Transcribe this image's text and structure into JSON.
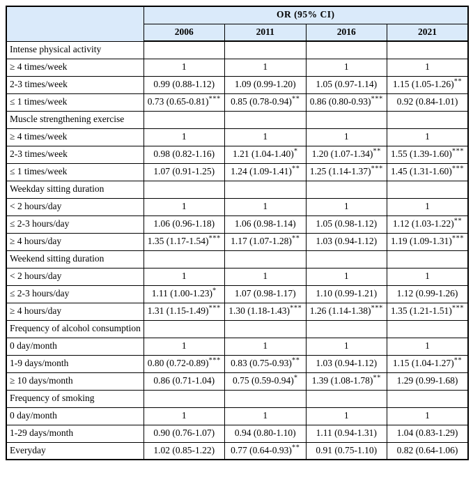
{
  "colors": {
    "header_bg": "#daeafa",
    "border": "#000000",
    "text": "#000000",
    "page_bg": "#ffffff"
  },
  "table": {
    "header": {
      "group_label": "OR (95% CI)",
      "years": [
        "2006",
        "2011",
        "2016",
        "2021"
      ]
    },
    "sections": [
      {
        "title": "Intense physical activity",
        "rows": [
          {
            "label": "≥ 4 times/week",
            "cells": [
              {
                "v": "1",
                "s": ""
              },
              {
                "v": "1",
                "s": ""
              },
              {
                "v": "1",
                "s": ""
              },
              {
                "v": "1",
                "s": ""
              }
            ]
          },
          {
            "label": "2-3 times/week",
            "cells": [
              {
                "v": "0.99 (0.88-1.12)",
                "s": ""
              },
              {
                "v": "1.09 (0.99-1.20)",
                "s": ""
              },
              {
                "v": "1.05 (0.97-1.14)",
                "s": ""
              },
              {
                "v": "1.15 (1.05-1.26)",
                "s": "**"
              }
            ]
          },
          {
            "label": "≤ 1 times/week",
            "cells": [
              {
                "v": "0.73 (0.65-0.81)",
                "s": "***"
              },
              {
                "v": "0.85 (0.78-0.94)",
                "s": "**"
              },
              {
                "v": "0.86 (0.80-0.93)",
                "s": "***"
              },
              {
                "v": "0.92 (0.84-1.01)",
                "s": ""
              }
            ]
          }
        ]
      },
      {
        "title": "Muscle strengthening exercise",
        "rows": [
          {
            "label": "≥ 4 times/week",
            "cells": [
              {
                "v": "1",
                "s": ""
              },
              {
                "v": "1",
                "s": ""
              },
              {
                "v": "1",
                "s": ""
              },
              {
                "v": "1",
                "s": ""
              }
            ]
          },
          {
            "label": "2-3 times/week",
            "cells": [
              {
                "v": "0.98 (0.82-1.16)",
                "s": ""
              },
              {
                "v": "1.21 (1.04-1.40)",
                "s": "*"
              },
              {
                "v": "1.20 (1.07-1.34)",
                "s": "**"
              },
              {
                "v": "1.55 (1.39-1.60)",
                "s": "***"
              }
            ]
          },
          {
            "label": "≤ 1 times/week",
            "cells": [
              {
                "v": "1.07 (0.91-1.25)",
                "s": ""
              },
              {
                "v": "1.24 (1.09-1.41)",
                "s": "**"
              },
              {
                "v": "1.25 (1.14-1.37)",
                "s": "***"
              },
              {
                "v": "1.45 (1.31-1.60)",
                "s": "***"
              }
            ]
          }
        ]
      },
      {
        "title": "Weekday sitting duration",
        "rows": [
          {
            "label": "< 2 hours/day",
            "cells": [
              {
                "v": "1",
                "s": ""
              },
              {
                "v": "1",
                "s": ""
              },
              {
                "v": "1",
                "s": ""
              },
              {
                "v": "1",
                "s": ""
              }
            ]
          },
          {
            "label": "≤ 2-3 hours/day",
            "cells": [
              {
                "v": "1.06 (0.96-1.18)",
                "s": ""
              },
              {
                "v": "1.06 (0.98-1.14)",
                "s": ""
              },
              {
                "v": "1.05 (0.98-1.12)",
                "s": ""
              },
              {
                "v": "1.12 (1.03-1.22)",
                "s": "**"
              }
            ]
          },
          {
            "label": "≥ 4 hours/day",
            "cells": [
              {
                "v": "1.35 (1.17-1.54)",
                "s": "***"
              },
              {
                "v": "1.17 (1.07-1.28)",
                "s": "**"
              },
              {
                "v": "1.03 (0.94-1.12)",
                "s": ""
              },
              {
                "v": "1.19 (1.09-1.31)",
                "s": "***"
              }
            ]
          }
        ]
      },
      {
        "title": "Weekend sitting duration",
        "rows": [
          {
            "label": "< 2 hours/day",
            "cells": [
              {
                "v": "1",
                "s": ""
              },
              {
                "v": "1",
                "s": ""
              },
              {
                "v": "1",
                "s": ""
              },
              {
                "v": "1",
                "s": ""
              }
            ]
          },
          {
            "label": "≤ 2-3 hours/day",
            "cells": [
              {
                "v": "1.11 (1.00-1.23)",
                "s": "*"
              },
              {
                "v": "1.07 (0.98-1.17)",
                "s": ""
              },
              {
                "v": "1.10 (0.99-1.21)",
                "s": ""
              },
              {
                "v": "1.12 (0.99-1.26)",
                "s": ""
              }
            ]
          },
          {
            "label": "≥ 4 hours/day",
            "cells": [
              {
                "v": "1.31 (1.15-1.49)",
                "s": "***"
              },
              {
                "v": "1.30 (1.18-1.43)",
                "s": "***"
              },
              {
                "v": "1.26 (1.14-1.38)",
                "s": "***"
              },
              {
                "v": "1.35 (1.21-1.51)",
                "s": "***"
              }
            ]
          }
        ]
      },
      {
        "title": "Frequency of alcohol consumption",
        "rows": [
          {
            "label": "0 day/month",
            "cells": [
              {
                "v": "1",
                "s": ""
              },
              {
                "v": "1",
                "s": ""
              },
              {
                "v": "1",
                "s": ""
              },
              {
                "v": "1",
                "s": ""
              }
            ]
          },
          {
            "label": "1-9 days/month",
            "cells": [
              {
                "v": "0.80 (0.72-0.89)",
                "s": "***"
              },
              {
                "v": "0.83 (0.75-0.93)",
                "s": "**"
              },
              {
                "v": "1.03 (0.94-1.12)",
                "s": ""
              },
              {
                "v": "1.15 (1.04-1.27)",
                "s": "**"
              }
            ]
          },
          {
            "label": "≥ 10 days/month",
            "cells": [
              {
                "v": "0.86 (0.71-1.04)",
                "s": ""
              },
              {
                "v": "0.75 (0.59-0.94)",
                "s": "*"
              },
              {
                "v": "1.39 (1.08-1.78)",
                "s": "**"
              },
              {
                "v": "1.29 (0.99-1.68)",
                "s": ""
              }
            ]
          }
        ]
      },
      {
        "title": "Frequency of smoking",
        "rows": [
          {
            "label": "0 day/month",
            "cells": [
              {
                "v": "1",
                "s": ""
              },
              {
                "v": "1",
                "s": ""
              },
              {
                "v": "1",
                "s": ""
              },
              {
                "v": "1",
                "s": ""
              }
            ]
          },
          {
            "label": "1-29 days/month",
            "cells": [
              {
                "v": "0.90 (0.76-1.07)",
                "s": ""
              },
              {
                "v": "0.94 (0.80-1.10)",
                "s": ""
              },
              {
                "v": "1.11 (0.94-1.31)",
                "s": ""
              },
              {
                "v": "1.04 (0.83-1.29)",
                "s": ""
              }
            ]
          },
          {
            "label": "Everyday",
            "cells": [
              {
                "v": "1.02 (0.85-1.22)",
                "s": ""
              },
              {
                "v": "0.77 (0.64-0.93)",
                "s": "**"
              },
              {
                "v": "0.91 (0.75-1.10)",
                "s": ""
              },
              {
                "v": "0.82 (0.64-1.06)",
                "s": ""
              }
            ]
          }
        ]
      }
    ]
  }
}
